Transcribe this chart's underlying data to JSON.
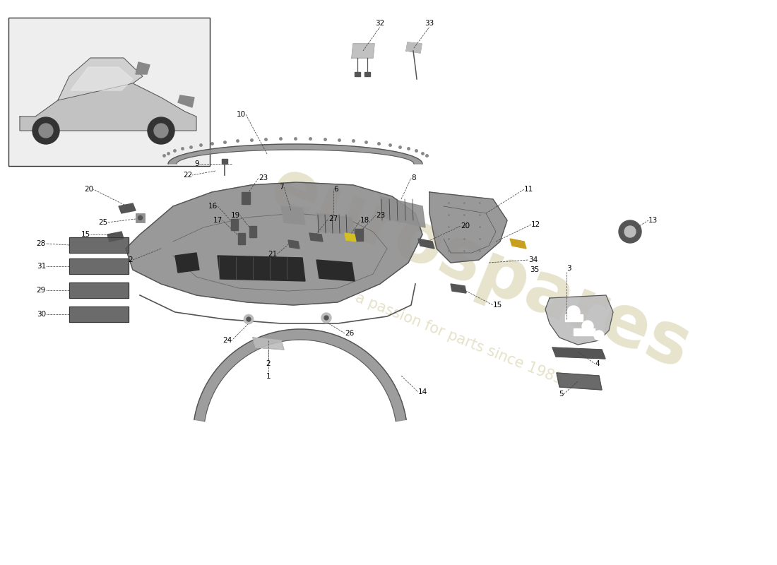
{
  "bg_color": "#ffffff",
  "watermark_text1": "eurospares",
  "watermark_text2": "a passion for parts since 1985",
  "watermark_color": "#ddd8b8",
  "label_color": "#000000",
  "line_color": "#444444",
  "part_color": "#909090",
  "part_color_dark": "#555555",
  "part_color_light": "#bbbbbb",
  "label_fontsize": 7.5
}
